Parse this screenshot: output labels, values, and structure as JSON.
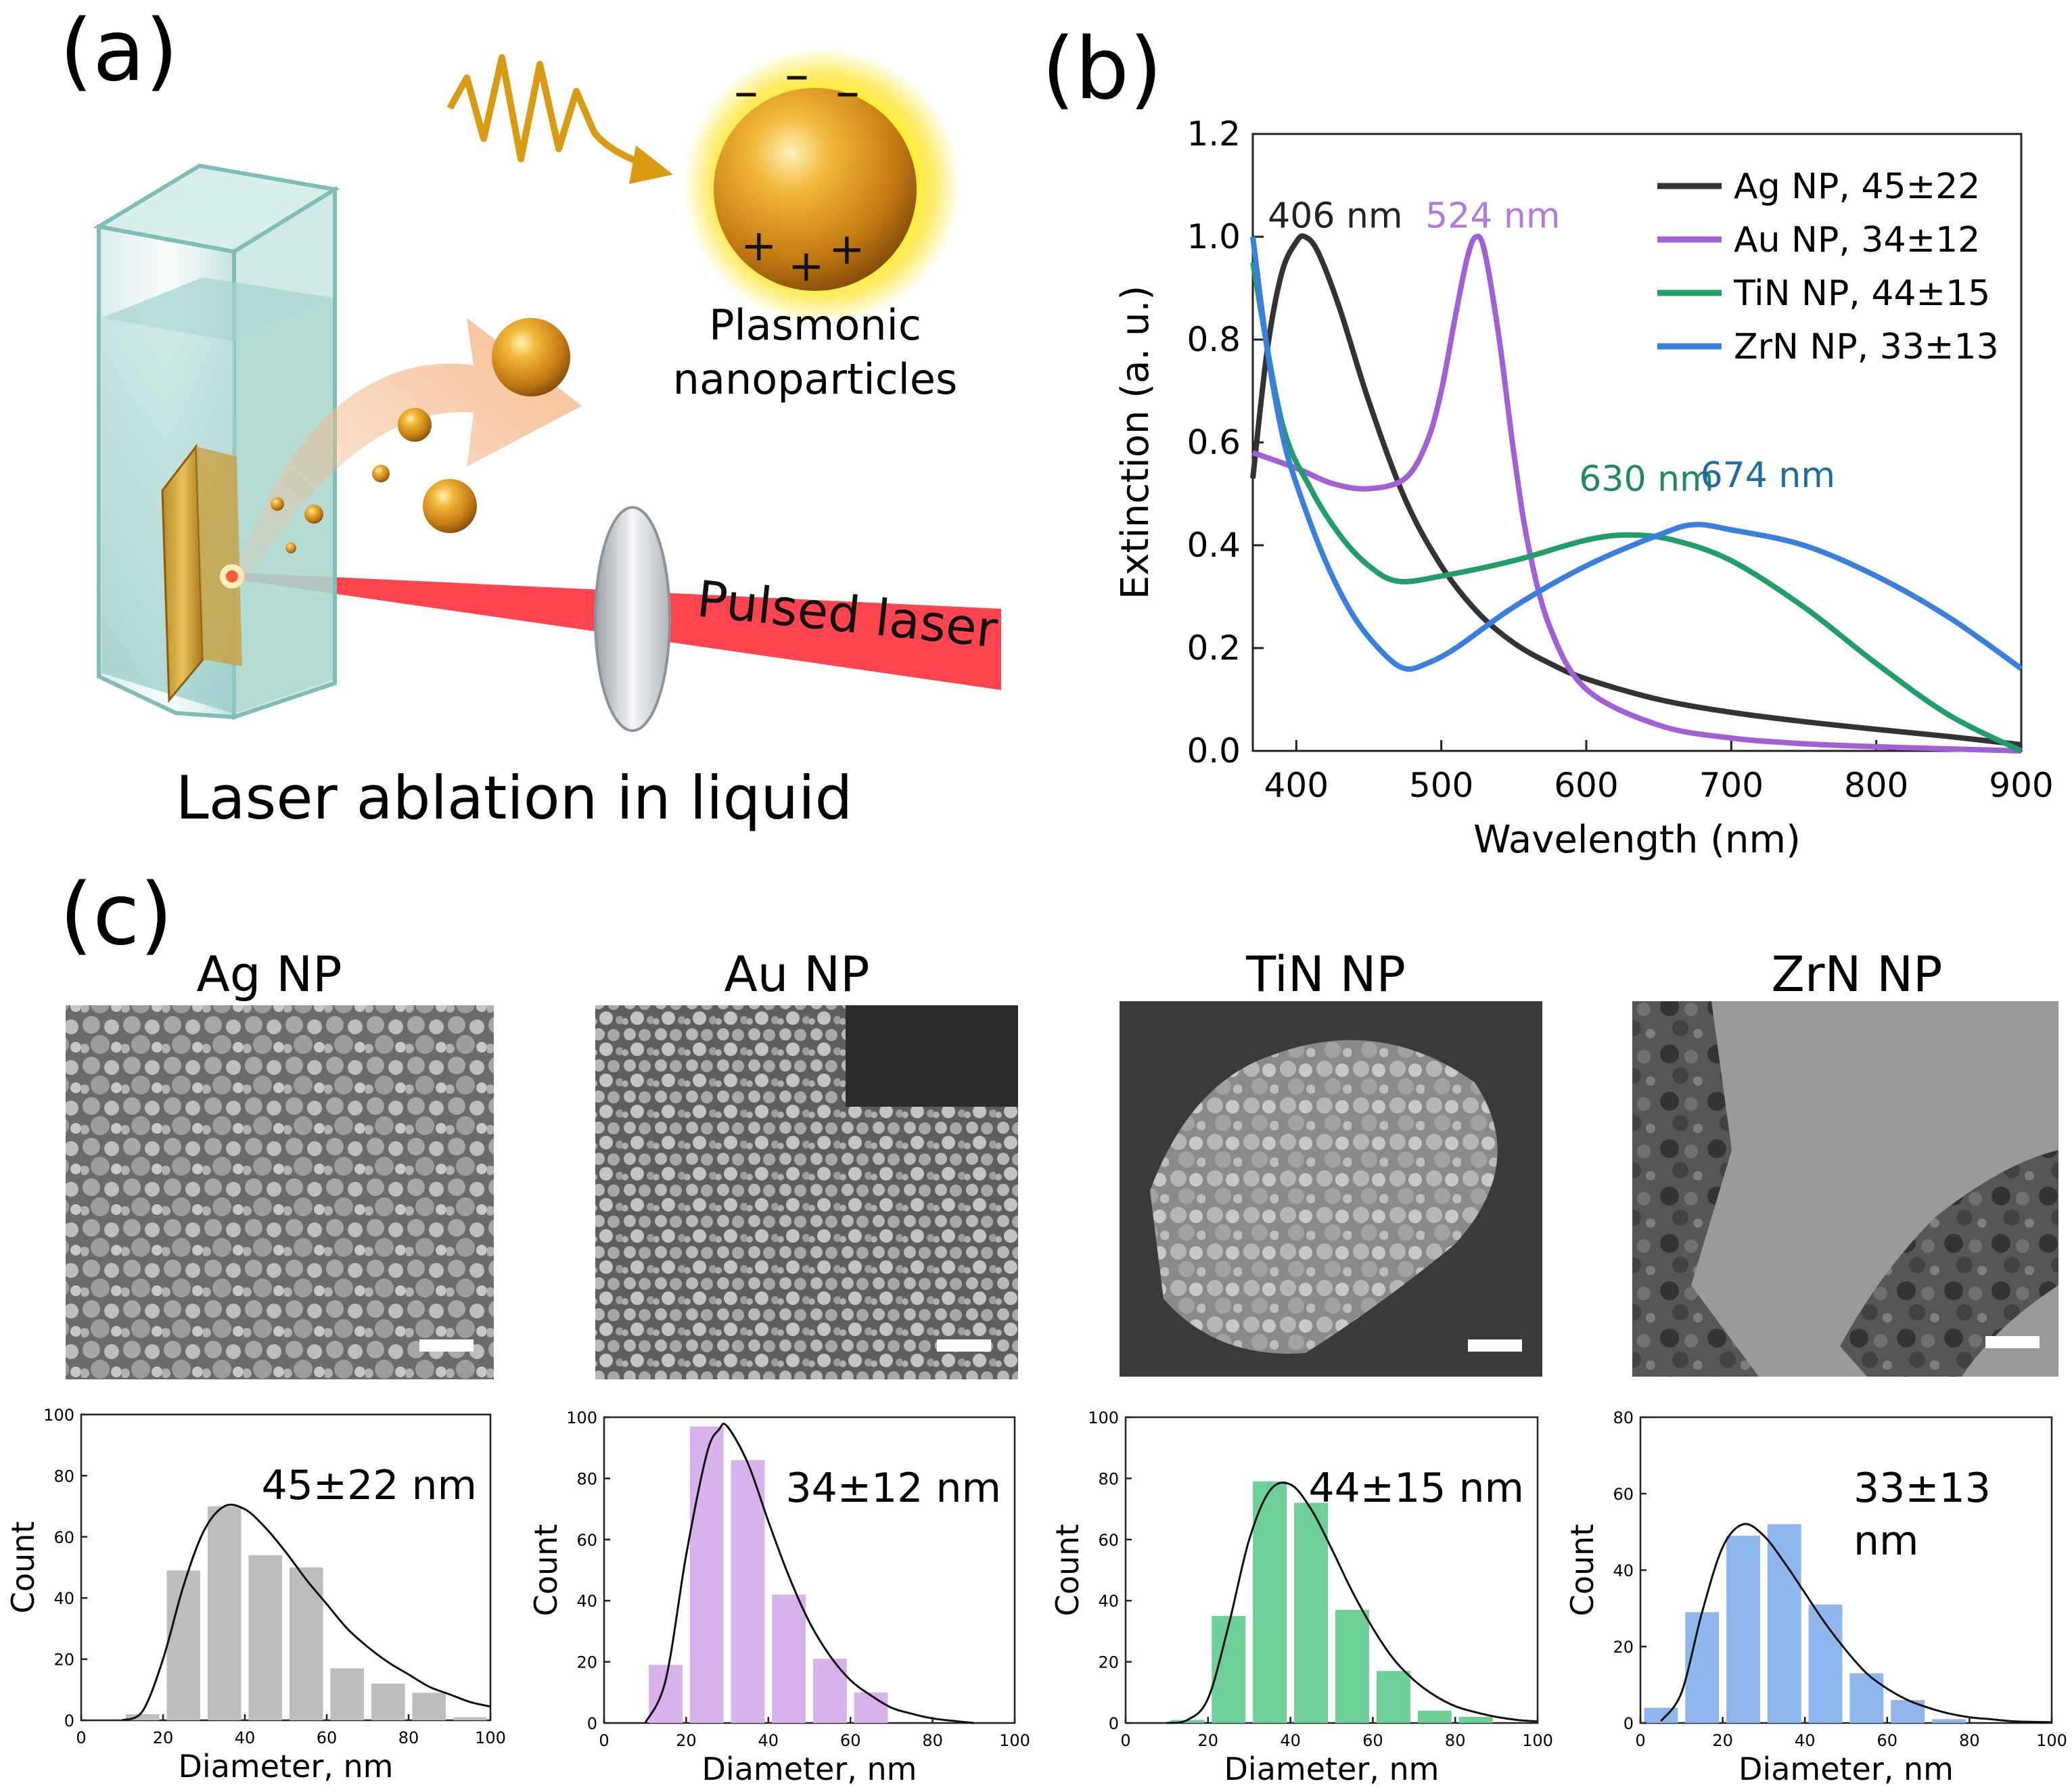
{
  "panels": {
    "a": "(a)",
    "b": "(b)",
    "c": "(c)"
  },
  "panel_a": {
    "caption": "Laser ablation in liquid",
    "particles_label_line1": "Plasmonic",
    "particles_label_line2": "nanoparticles",
    "laser_label": "Pulsed laser",
    "minus_sign": "–",
    "plus_sign": "+"
  },
  "chart_data": [
    {
      "id": "extinction",
      "type": "line",
      "title": "",
      "xlabel": "Wavelength (nm)",
      "ylabel": "Extinction (a. u.)",
      "xlim": [
        370,
        900
      ],
      "ylim": [
        0,
        1.2
      ],
      "xticks": [
        "400",
        "500",
        "600",
        "700",
        "800",
        "900"
      ],
      "yticks": [
        "0.0",
        "0.2",
        "0.4",
        "0.6",
        "0.8",
        "1.0",
        "1.2"
      ],
      "xtick_values": [
        400,
        500,
        600,
        700,
        800,
        900
      ],
      "ytick_values": [
        0,
        0.2,
        0.4,
        0.6,
        0.8,
        1.0,
        1.2
      ],
      "series": [
        {
          "name": "Ag NP, 45±22",
          "color": "#333333",
          "x": [
            370,
            380,
            390,
            400,
            406,
            415,
            430,
            450,
            475,
            500,
            525,
            550,
            575,
            600,
            650,
            700,
            750,
            800,
            850,
            900
          ],
          "y": [
            0.53,
            0.78,
            0.93,
            0.99,
            1.0,
            0.97,
            0.86,
            0.68,
            0.49,
            0.36,
            0.27,
            0.21,
            0.17,
            0.14,
            0.1,
            0.075,
            0.057,
            0.042,
            0.028,
            0.012
          ]
        },
        {
          "name": "Au NP, 34±12",
          "color": "#a25fd6",
          "x": [
            370,
            400,
            425,
            450,
            475,
            490,
            500,
            510,
            518,
            524,
            530,
            540,
            550,
            560,
            575,
            600,
            650,
            700,
            750,
            800,
            850,
            900
          ],
          "y": [
            0.58,
            0.55,
            0.52,
            0.51,
            0.53,
            0.6,
            0.7,
            0.85,
            0.96,
            1.0,
            0.97,
            0.8,
            0.58,
            0.4,
            0.24,
            0.12,
            0.05,
            0.025,
            0.014,
            0.008,
            0.004,
            0.0
          ]
        },
        {
          "name": "TiN NP, 44±15",
          "color": "#1f9e6a",
          "x": [
            370,
            390,
            410,
            430,
            450,
            470,
            500,
            550,
            600,
            630,
            660,
            700,
            750,
            800,
            850,
            900
          ],
          "y": [
            0.95,
            0.64,
            0.51,
            0.42,
            0.36,
            0.33,
            0.34,
            0.37,
            0.41,
            0.42,
            0.41,
            0.37,
            0.28,
            0.17,
            0.07,
            0.0
          ]
        },
        {
          "name": "ZrN NP, 33±13",
          "color": "#3a7fde",
          "x": [
            370,
            380,
            390,
            400,
            420,
            440,
            460,
            475,
            490,
            510,
            550,
            600,
            650,
            674,
            700,
            750,
            800,
            850,
            900
          ],
          "y": [
            1.0,
            0.78,
            0.62,
            0.52,
            0.37,
            0.26,
            0.19,
            0.16,
            0.17,
            0.2,
            0.28,
            0.36,
            0.42,
            0.44,
            0.43,
            0.4,
            0.34,
            0.26,
            0.16
          ]
        }
      ],
      "annotations": [
        {
          "text": "406 nm",
          "x": 406,
          "color": "#222222"
        },
        {
          "text": "524 nm",
          "x": 524,
          "color": "#b07be0"
        },
        {
          "text": "630 nm",
          "x": 630,
          "color": "#1f8a5c"
        },
        {
          "text": "674 nm",
          "x": 674,
          "color": "#1f6aa8"
        }
      ],
      "legend_position": "top-right"
    },
    {
      "id": "hist-ag",
      "type": "bar",
      "title": "Ag NP",
      "label": "45±22 nm",
      "xlabel": "Diameter, nm",
      "ylabel": "Count",
      "xlim": [
        0,
        100
      ],
      "ylim": [
        0,
        100
      ],
      "xticks": [
        "0",
        "20",
        "40",
        "60",
        "80",
        "100"
      ],
      "yticks": [
        "0",
        "20",
        "40",
        "60",
        "80",
        "100"
      ],
      "xtick_values": [
        0,
        20,
        40,
        60,
        80,
        100
      ],
      "ytick_values": [
        0,
        20,
        40,
        60,
        80,
        100
      ],
      "bin_centers": [
        15,
        25,
        35,
        45,
        55,
        65,
        75,
        85,
        95
      ],
      "values": [
        2,
        49,
        70,
        54,
        50,
        17,
        12,
        9,
        1
      ],
      "color": "#bdbdbd",
      "fit_x": [
        10,
        15,
        20,
        25,
        30,
        35,
        40,
        45,
        50,
        55,
        60,
        65,
        70,
        75,
        80,
        85,
        90,
        95,
        100
      ],
      "fit_y": [
        0,
        3,
        20,
        44,
        62,
        70,
        69,
        63,
        55,
        46,
        38,
        30,
        24,
        19,
        15,
        11,
        8.5,
        6,
        4.5
      ]
    },
    {
      "id": "hist-au",
      "type": "bar",
      "title": "Au NP",
      "label": "34±12 nm",
      "xlabel": "Diameter, nm",
      "ylabel": "Count",
      "xlim": [
        0,
        100
      ],
      "ylim": [
        0,
        100
      ],
      "xticks": [
        "0",
        "20",
        "40",
        "60",
        "80",
        "100"
      ],
      "yticks": [
        "0",
        "20",
        "40",
        "60",
        "80",
        "100"
      ],
      "xtick_values": [
        0,
        20,
        40,
        60,
        80,
        100
      ],
      "ytick_values": [
        0,
        20,
        40,
        60,
        80,
        100
      ],
      "bin_centers": [
        15,
        25,
        35,
        45,
        55,
        65
      ],
      "values": [
        19,
        97,
        86,
        42,
        21,
        10
      ],
      "color": "#d6b3ea",
      "fit_x": [
        10,
        15,
        20,
        25,
        28,
        30,
        35,
        40,
        45,
        50,
        55,
        60,
        65,
        70,
        75,
        80,
        85,
        90
      ],
      "fit_y": [
        0,
        14,
        55,
        88,
        96,
        97,
        85,
        66,
        48,
        33,
        22,
        14,
        9,
        5,
        3,
        1.5,
        0.7,
        0
      ]
    },
    {
      "id": "hist-tin",
      "type": "bar",
      "title": "TiN NP",
      "label": "44±15 nm",
      "xlabel": "Diameter, nm",
      "ylabel": "Count",
      "xlim": [
        0,
        100
      ],
      "ylim": [
        0,
        100
      ],
      "xticks": [
        "0",
        "20",
        "40",
        "60",
        "80",
        "100"
      ],
      "yticks": [
        "0",
        "20",
        "40",
        "60",
        "80",
        "100"
      ],
      "xtick_values": [
        0,
        20,
        40,
        60,
        80,
        100
      ],
      "ytick_values": [
        0,
        20,
        40,
        60,
        80,
        100
      ],
      "bin_centers": [
        15,
        25,
        35,
        45,
        55,
        65,
        75,
        85
      ],
      "values": [
        1,
        35,
        79,
        72,
        37,
        17,
        4,
        2
      ],
      "color": "#6fcf98",
      "fit_x": [
        10,
        15,
        20,
        25,
        30,
        35,
        40,
        45,
        50,
        55,
        60,
        65,
        70,
        75,
        80,
        85,
        90,
        95,
        100
      ],
      "fit_y": [
        0,
        1,
        8,
        32,
        60,
        76,
        78,
        70,
        57,
        43,
        31,
        21,
        14,
        9,
        5.5,
        3.5,
        2,
        1,
        0.5
      ]
    },
    {
      "id": "hist-zrn",
      "type": "bar",
      "title": "ZrN NP",
      "label": "33±13 nm",
      "xlabel": "Diameter, nm",
      "ylabel": "Count",
      "xlim": [
        0,
        100
      ],
      "ylim": [
        0,
        80
      ],
      "xticks": [
        "0",
        "20",
        "40",
        "60",
        "80",
        "100"
      ],
      "yticks": [
        "0",
        "20",
        "40",
        "60",
        "80"
      ],
      "xtick_values": [
        0,
        20,
        40,
        60,
        80,
        100
      ],
      "ytick_values": [
        0,
        20,
        40,
        60,
        80
      ],
      "bin_centers": [
        5,
        15,
        25,
        35,
        45,
        55,
        65,
        75
      ],
      "values": [
        4,
        29,
        49,
        52,
        31,
        13,
        6,
        1
      ],
      "color": "#8fb7ee",
      "fit_x": [
        5,
        10,
        15,
        20,
        25,
        30,
        35,
        40,
        45,
        50,
        55,
        60,
        65,
        70,
        75,
        80,
        85,
        90,
        95,
        100
      ],
      "fit_y": [
        0.5,
        8,
        29,
        46,
        52,
        49,
        42,
        34,
        26,
        19,
        13,
        9,
        6,
        4,
        2.5,
        1.5,
        1,
        0.5,
        0.3,
        0.2
      ]
    }
  ],
  "micrographs": [
    {
      "id": "ag",
      "style": "sem"
    },
    {
      "id": "au",
      "style": "sem"
    },
    {
      "id": "tin",
      "style": "sem"
    },
    {
      "id": "zrn",
      "style": "tem"
    }
  ]
}
